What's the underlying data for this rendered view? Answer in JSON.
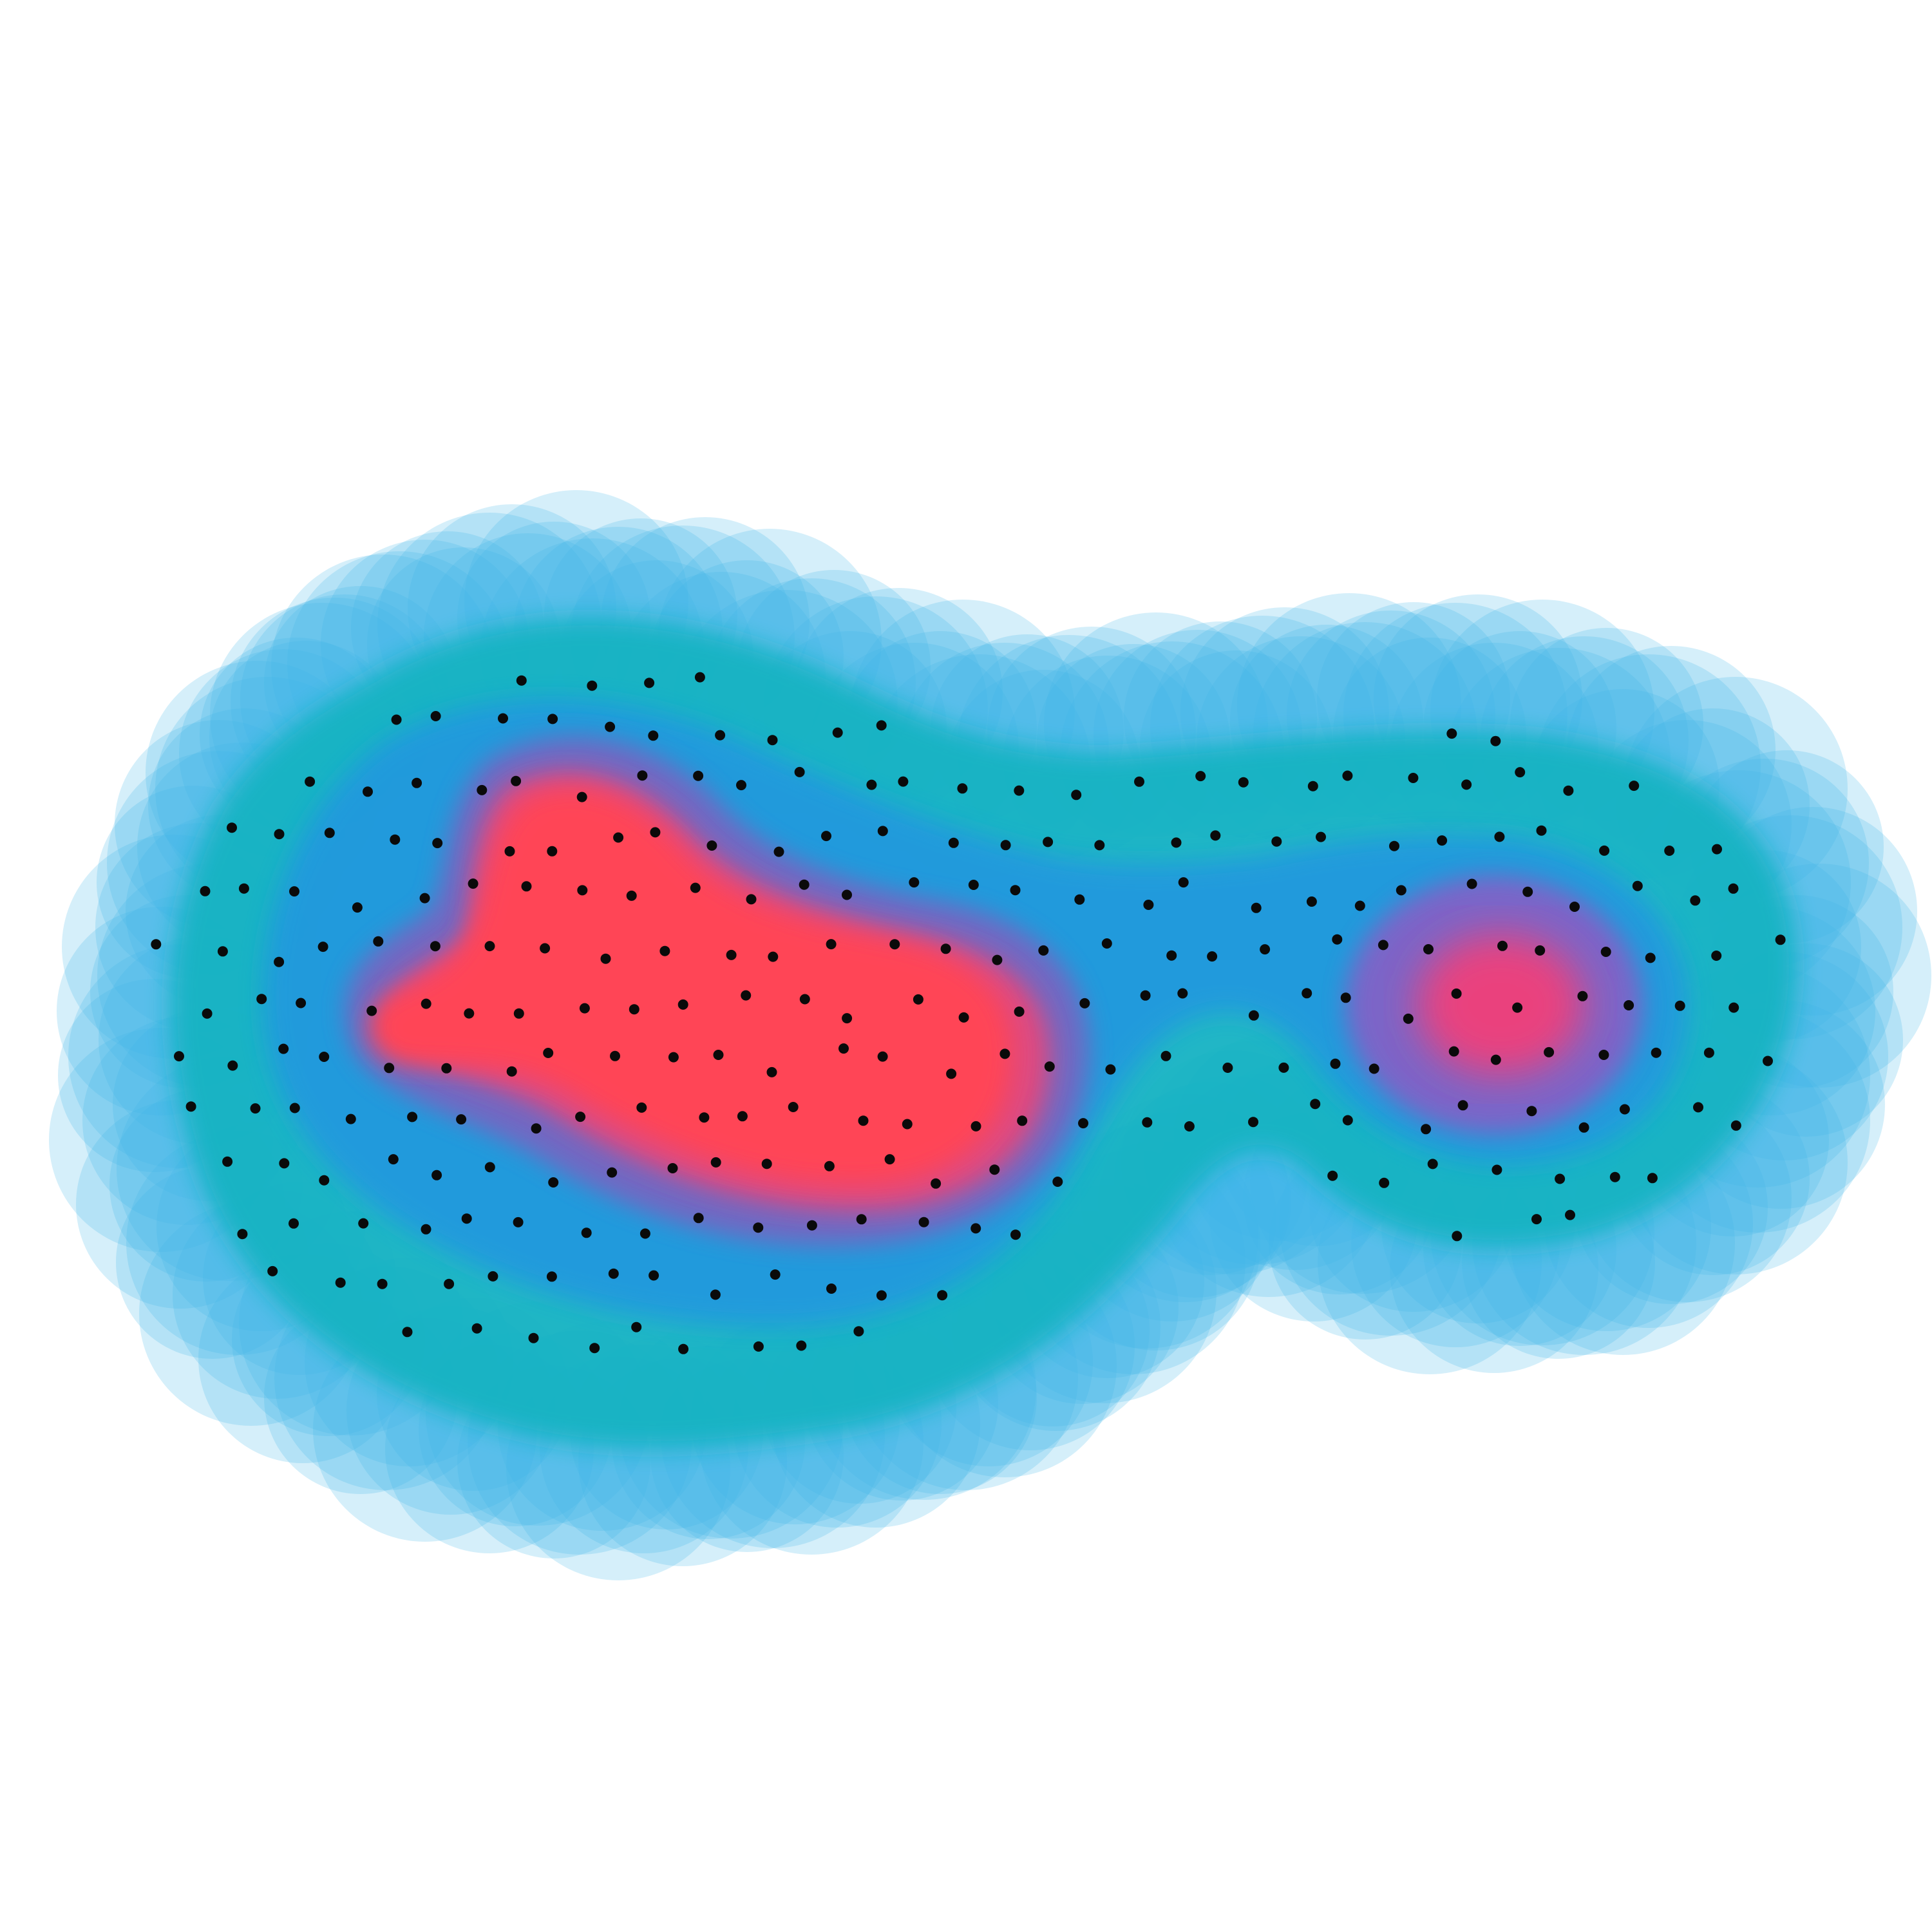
{
  "figure": {
    "background": "#ffffff",
    "palette": {
      "halo": "#41b4e6",
      "outer_band": "#14b3c3",
      "band_teal": "#0fa9c8",
      "band_blue": "#2196e0",
      "core_violet": "#7a64c0",
      "core_magenta": "#e8467a",
      "core_red": "#ff4457",
      "dot": "#0a0a0a"
    },
    "description_labels": []
  }
}
